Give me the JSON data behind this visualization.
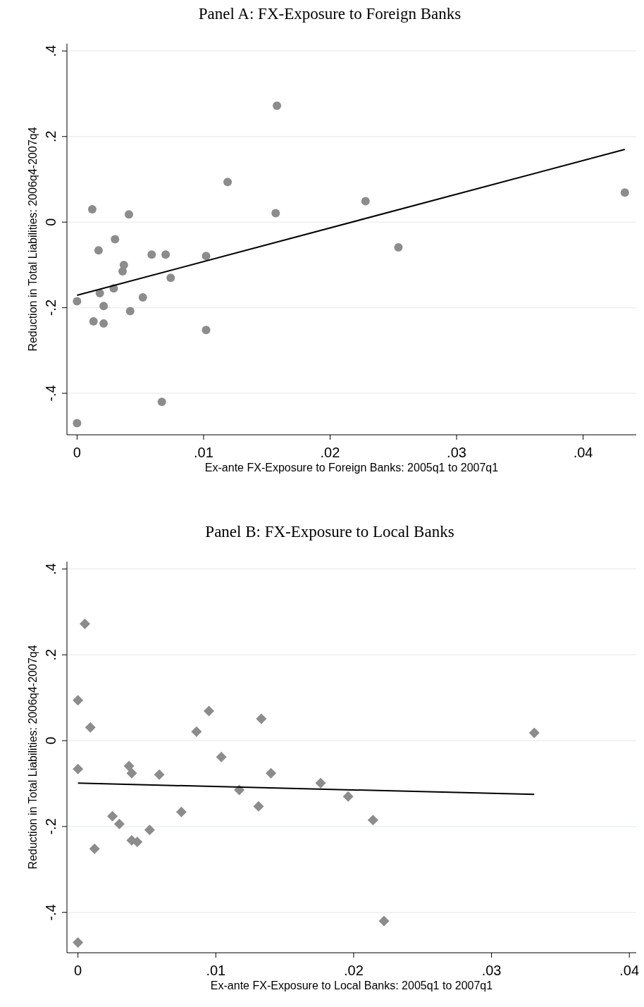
{
  "chart_data": [
    {
      "type": "scatter",
      "title": "Panel A: FX-Exposure to Foreign Banks",
      "xlabel": "Ex-ante FX-Exposure to Foreign Banks: 2005q1 to 2007q1",
      "ylabel": "Reduction in Total Liabilities: 2006q4-2007q4",
      "xlim": [
        -0.0008,
        0.0442
      ],
      "ylim": [
        -0.497,
        0.417
      ],
      "xticks": [
        0,
        {
          "value": 0.01,
          "label": ".01"
        },
        {
          "value": 0.02,
          "label": ".02"
        },
        {
          "value": 0.03,
          "label": ".03"
        },
        {
          "value": 0.04,
          "label": ".04"
        }
      ],
      "yticks": [
        {
          "value": -0.4,
          "label": "-.4"
        },
        {
          "value": -0.2,
          "label": "-.2"
        },
        0,
        {
          "value": 0.2,
          "label": ".2"
        },
        {
          "value": 0.4,
          "label": ".4"
        }
      ],
      "grid": "y",
      "series": [
        {
          "marker": "circle",
          "color": "#8c8c8c",
          "x": [
            0,
            0,
            0.0012,
            0.0013,
            0.0017,
            0.0018,
            0.0021,
            0.0021,
            0.0029,
            0.003,
            0.0036,
            0.0037,
            0.0041,
            0.0042,
            0.0052,
            0.0059,
            0.0067,
            0.007,
            0.0074,
            0.0102,
            0.0102,
            0.0119,
            0.0157,
            0.0158,
            0.0228,
            0.0254,
            0.0433
          ],
          "values": [
            -0.185,
            -0.47,
            0.03,
            -0.232,
            -0.066,
            -0.166,
            -0.196,
            -0.237,
            -0.155,
            -0.04,
            -0.115,
            -0.1,
            0.018,
            -0.208,
            -0.176,
            -0.076,
            -0.42,
            -0.076,
            -0.13,
            -0.079,
            -0.252,
            0.094,
            0.021,
            0.272,
            0.049,
            -0.059,
            0.069
          ]
        },
        {
          "type": "line",
          "color": "#000000",
          "x": [
            0,
            0.0433
          ],
          "values": [
            -0.171,
            0.17
          ]
        }
      ]
    },
    {
      "type": "scatter",
      "title": "Panel B: FX-Exposure to Local Banks",
      "xlabel": "Ex-ante FX-Exposure to Local Banks: 2005q1 to 2007q1",
      "ylabel": "Reduction in Total Liabilities: 2006q4-2007q4",
      "xlim": [
        -0.0008,
        0.0405
      ],
      "ylim": [
        -0.494,
        0.417
      ],
      "xticks": [
        0,
        {
          "value": 0.01,
          "label": ".01"
        },
        {
          "value": 0.02,
          "label": ".02"
        },
        {
          "value": 0.03,
          "label": ".03"
        },
        {
          "value": 0.04,
          "label": ".04"
        }
      ],
      "yticks": [
        {
          "value": -0.4,
          "label": "-.4"
        },
        {
          "value": -0.2,
          "label": "-.2"
        },
        0,
        {
          "value": 0.2,
          "label": ".2"
        },
        {
          "value": 0.4,
          "label": ".4"
        }
      ],
      "grid": "y",
      "series": [
        {
          "marker": "diamond",
          "color": "#8c8c8c",
          "x": [
            0.0005,
            0,
            0.0009,
            0,
            0,
            0.0012,
            0.0025,
            0.003,
            0.0037,
            0.0039,
            0.0039,
            0.0043,
            0.0052,
            0.0059,
            0.0075,
            0.0086,
            0.0095,
            0.0104,
            0.0117,
            0.0131,
            0.0133,
            0.014,
            0.0176,
            0.0196,
            0.0214,
            0.0222,
            0.0331
          ],
          "values": [
            0.272,
            0.094,
            0.031,
            -0.066,
            -0.47,
            -0.252,
            -0.176,
            -0.194,
            -0.059,
            -0.076,
            -0.232,
            -0.236,
            -0.208,
            -0.079,
            -0.166,
            0.021,
            0.069,
            -0.038,
            -0.115,
            -0.153,
            0.051,
            -0.076,
            -0.099,
            -0.13,
            -0.185,
            -0.42,
            0.018
          ]
        },
        {
          "type": "line",
          "color": "#000000",
          "x": [
            0,
            0.0331
          ],
          "values": [
            -0.099,
            -0.125
          ]
        }
      ]
    }
  ]
}
